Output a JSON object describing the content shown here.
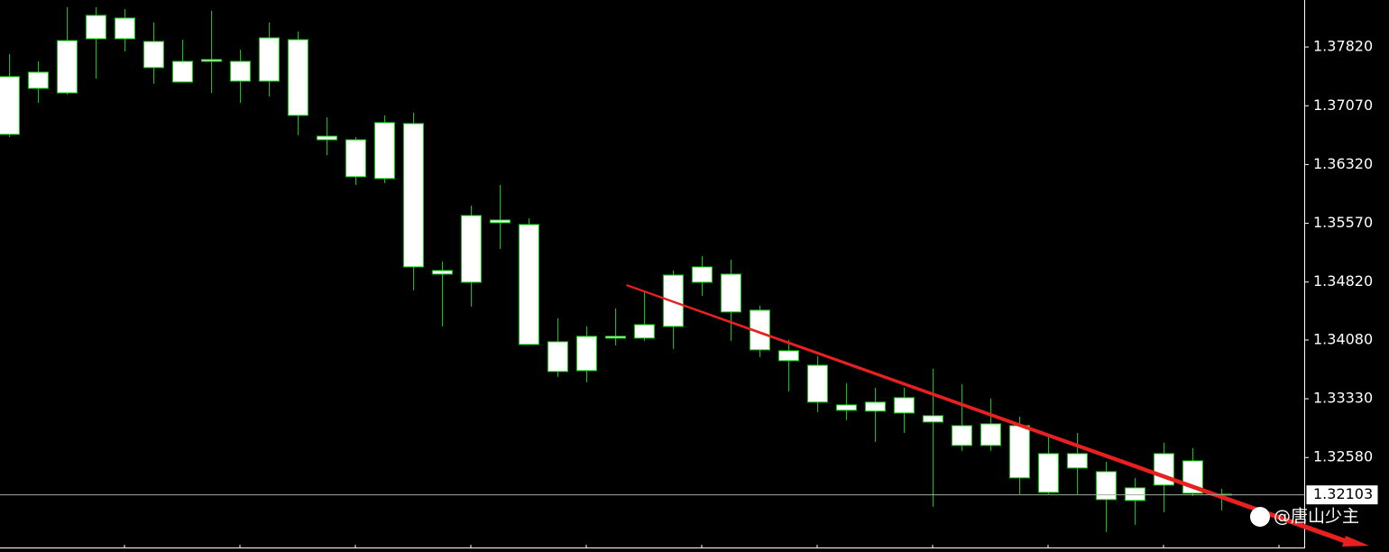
{
  "chart_data": {
    "type": "candlestick",
    "color": "#00d000",
    "body_color": "#ffffff",
    "background": "#000000",
    "open": [
      1.36705,
      1.37292,
      1.37234,
      1.37925,
      1.3819,
      1.37891,
      1.37637,
      1.37637,
      1.37637,
      1.37384,
      1.37914,
      1.36682,
      1.36636,
      1.36141,
      1.36843,
      1.34921,
      1.34817,
      1.35612,
      1.35554,
      1.34058,
      1.33689,
      1.34104,
      1.34104,
      1.34253,
      1.34817,
      1.34921,
      1.34461,
      1.33943,
      1.33758,
      1.33252,
      1.33172,
      1.33148,
      1.33114,
      1.32987,
      1.32734,
      1.32987,
      1.32135,
      1.3263,
      1.324,
      1.32032,
      1.32228,
      1.32538,
      1.32112
    ],
    "high": [
      1.37729,
      1.37637,
      1.38328,
      1.38328,
      1.38305,
      1.38132,
      1.37914,
      1.38282,
      1.37787,
      1.38132,
      1.38017,
      1.36924,
      1.3667,
      1.36947,
      1.36981,
      1.35082,
      1.35796,
      1.3606,
      1.35634,
      1.34357,
      1.34253,
      1.34484,
      1.34702,
      1.34967,
      1.35151,
      1.35105,
      1.34518,
      1.34081,
      1.33874,
      1.33528,
      1.33471,
      1.33471,
      1.33712,
      1.33517,
      1.33333,
      1.33102,
      1.32838,
      1.32895,
      1.32527,
      1.3232,
      1.32769,
      1.32699,
      1.32182
    ],
    "low": [
      1.3667,
      1.37108,
      1.37211,
      1.37419,
      1.37764,
      1.3735,
      1.37373,
      1.37234,
      1.37108,
      1.37188,
      1.36694,
      1.3644,
      1.3606,
      1.36083,
      1.34714,
      1.34253,
      1.34507,
      1.35243,
      1.34023,
      1.33609,
      1.3354,
      1.34012,
      1.34069,
      1.33966,
      1.34645,
      1.34069,
      1.33862,
      1.33425,
      1.33159,
      1.33056,
      1.3278,
      1.32895,
      1.31951,
      1.32665,
      1.32665,
      1.32112,
      1.32112,
      1.32112,
      1.31629,
      1.31721,
      1.31882,
      1.32089,
      1.31905
    ],
    "close": [
      1.37442,
      1.37499,
      1.37902,
      1.38224,
      1.37925,
      1.37557,
      1.37373,
      1.3766,
      1.37384,
      1.37937,
      1.36947,
      1.36636,
      1.36164,
      1.36855,
      1.35013,
      1.34967,
      1.35669,
      1.35577,
      1.34023,
      1.33678,
      1.34127,
      1.34127,
      1.34276,
      1.34909,
      1.35013,
      1.34438,
      1.33954,
      1.33816,
      1.33287,
      1.33183,
      1.33287,
      1.33344,
      1.33033,
      1.32734,
      1.3301,
      1.3232,
      1.3263,
      1.32446,
      1.32043,
      1.32193,
      1.3263,
      1.32124,
      1.32103
    ],
    "ylim": [
      1.3142,
      1.3842
    ],
    "yticks": [
      {
        "value": 1.3782,
        "label": "1.37820"
      },
      {
        "value": 1.3707,
        "label": "1.37070"
      },
      {
        "value": 1.3632,
        "label": "1.36320"
      },
      {
        "value": 1.3557,
        "label": "1.35570"
      },
      {
        "value": 1.3482,
        "label": "1.34820"
      },
      {
        "value": 1.3408,
        "label": "1.34080"
      },
      {
        "value": 1.3333,
        "label": "1.33330"
      },
      {
        "value": 1.3258,
        "label": "1.32580"
      }
    ],
    "last_price": 1.32103,
    "watermark": "@唐山少主"
  }
}
